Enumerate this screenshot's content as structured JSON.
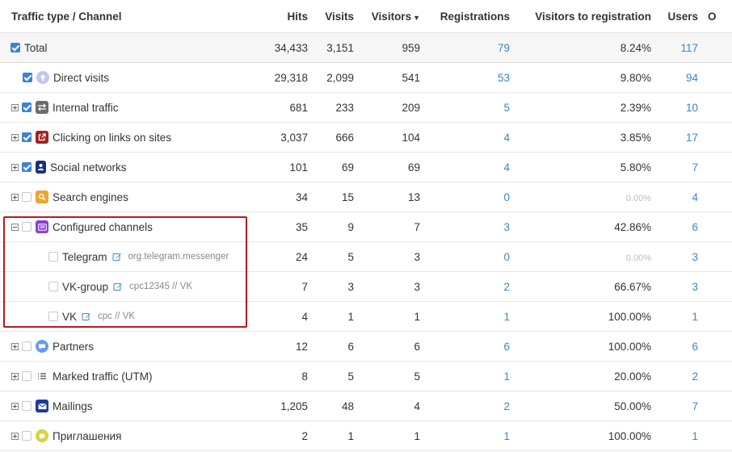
{
  "headers": {
    "channel": "Traffic type / Channel",
    "hits": "Hits",
    "visits": "Visits",
    "visitors": "Visitors",
    "registrations": "Registrations",
    "v2r": "Visitors to registration",
    "users": "Users",
    "o": "O"
  },
  "icons": {
    "sort": "sort-desc-caret",
    "edit": "pencil-edit-icon"
  },
  "rows": [
    {
      "label": "Total",
      "hits": "34,433",
      "visits": "3,151",
      "visitors": "959",
      "registrations": "79",
      "v2r": "8.24%",
      "users": "117"
    },
    {
      "label": "Direct visits",
      "hits": "29,318",
      "visits": "2,099",
      "visitors": "541",
      "registrations": "53",
      "v2r": "9.80%",
      "users": "94",
      "icon": "arrow-up-icon",
      "color": "#c6c4ec"
    },
    {
      "label": "Internal traffic",
      "hits": "681",
      "visits": "233",
      "visitors": "209",
      "registrations": "5",
      "v2r": "2.39%",
      "users": "10",
      "icon": "swap-arrows-icon",
      "color": "#6c6c6c"
    },
    {
      "label": "Clicking on links on sites",
      "hits": "3,037",
      "visits": "666",
      "visitors": "104",
      "registrations": "4",
      "v2r": "3.85%",
      "users": "17",
      "icon": "external-link-icon",
      "color": "#a52020"
    },
    {
      "label": "Social networks",
      "hits": "101",
      "visits": "69",
      "visitors": "69",
      "registrations": "4",
      "v2r": "5.80%",
      "users": "7",
      "icon": "person-icon",
      "color": "#1d2f7a"
    },
    {
      "label": "Search engines",
      "hits": "34",
      "visits": "15",
      "visitors": "13",
      "registrations": "0",
      "v2r": "0.00%",
      "users": "4",
      "icon": "search-icon",
      "color": "#eaa632"
    },
    {
      "label": "Configured channels",
      "hits": "35",
      "visits": "9",
      "visitors": "7",
      "registrations": "3",
      "v2r": "42.86%",
      "users": "6",
      "icon": "list-card-icon",
      "color": "#8e3fd1"
    },
    {
      "label": "Telegram",
      "sub": "org.telegram.messenger",
      "hits": "24",
      "visits": "5",
      "visitors": "3",
      "registrations": "0",
      "v2r": "0.00%",
      "users": "3"
    },
    {
      "label": "VK-group",
      "sub": "cpc12345 // VK",
      "hits": "7",
      "visits": "3",
      "visitors": "3",
      "registrations": "2",
      "v2r": "66.67%",
      "users": "3"
    },
    {
      "label": "VK",
      "sub": "cpc // VK",
      "hits": "4",
      "visits": "1",
      "visitors": "1",
      "registrations": "1",
      "v2r": "100.00%",
      "users": "1"
    },
    {
      "label": "Partners",
      "hits": "12",
      "visits": "6",
      "visitors": "6",
      "registrations": "6",
      "v2r": "100.00%",
      "users": "6",
      "icon": "speech-bubble-icon",
      "color": "#6a9ce6"
    },
    {
      "label": "Marked traffic (UTM)",
      "hits": "8",
      "visits": "5",
      "visitors": "5",
      "registrations": "1",
      "v2r": "20.00%",
      "users": "2",
      "icon": "list-lines-icon",
      "color": "#666666"
    },
    {
      "label": "Mailings",
      "hits": "1,205",
      "visits": "48",
      "visitors": "4",
      "registrations": "2",
      "v2r": "50.00%",
      "users": "7",
      "icon": "envelope-icon",
      "color": "#1d3a9c"
    },
    {
      "label": "Приглашения",
      "hits": "2",
      "visits": "1",
      "visitors": "1",
      "registrations": "1",
      "v2r": "100.00%",
      "users": "1",
      "icon": "chat-bubble-icon",
      "color": "#d8d341"
    }
  ]
}
